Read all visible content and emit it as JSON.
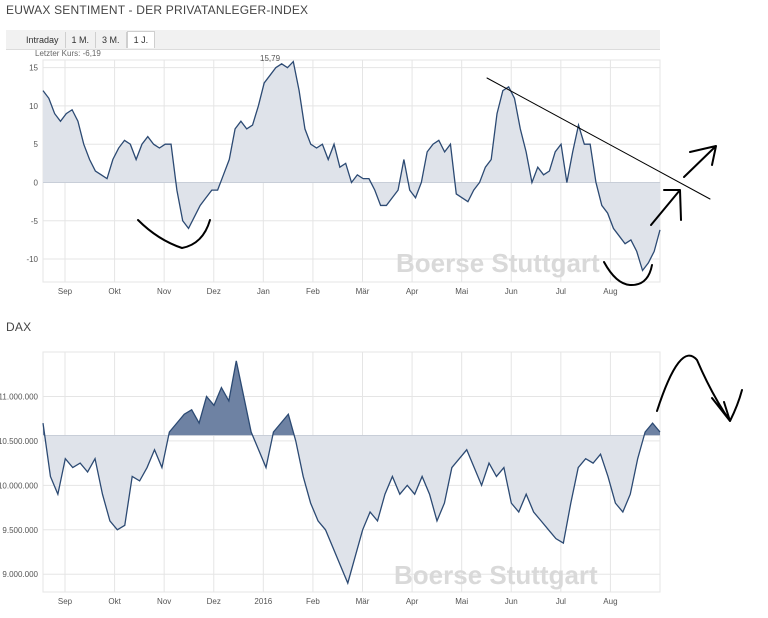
{
  "top_chart": {
    "title": "EUWAX SENTIMENT - DER PRIVATANLEGER-INDEX",
    "last_value_text": "Letzter Kurs: -6,19",
    "peak_label": "15,79",
    "watermark": "Boerse Stuttgart"
  },
  "tabs": [
    {
      "label": "Intraday",
      "active": false
    },
    {
      "label": "1 M.",
      "active": false
    },
    {
      "label": "3 M.",
      "active": false
    },
    {
      "label": "1 J.",
      "active": true
    }
  ],
  "bottom_chart": {
    "title": "DAX",
    "watermark": "Boerse Stuttgart"
  },
  "colors": {
    "line": "#2c4a73",
    "fill": "#dfe3ea",
    "fill_dark": "#6e82a3",
    "grid": "#e5e5e5",
    "annotation": "#000000"
  },
  "chart_data": [
    {
      "type": "area",
      "ylim": [
        -13,
        16
      ],
      "yticks": [
        15,
        10,
        5,
        0,
        -5,
        -10
      ],
      "baseline": 0,
      "xlabels": [
        "Sep",
        "Okt",
        "Nov",
        "Dez",
        "Jan",
        "Feb",
        "Mär",
        "Apr",
        "Mai",
        "Jun",
        "Jul",
        "Aug"
      ],
      "series": [
        {
          "values": [
            12,
            11,
            9,
            8,
            9,
            9.5,
            8,
            5,
            3,
            1.5,
            1,
            0.5,
            3,
            4.5,
            5.5,
            5,
            3,
            5,
            6,
            5,
            4.5,
            5,
            5,
            -1,
            -5,
            -6,
            -4.5,
            -3,
            -2,
            -1,
            -1,
            1,
            3,
            7,
            8,
            7,
            7.5,
            10,
            13,
            14,
            15,
            15.5,
            15,
            15.79,
            12,
            7,
            5,
            4.5,
            5,
            3,
            5,
            2,
            2.5,
            0,
            1,
            0.5,
            0.5,
            -1,
            -3,
            -3,
            -2,
            -1,
            3,
            -1,
            -2,
            0,
            4,
            5,
            5.5,
            4,
            5,
            -1.5,
            -2,
            -2.5,
            -1,
            0,
            2,
            3,
            9,
            12,
            12.5,
            11,
            7,
            4,
            0,
            2,
            1,
            1.5,
            4,
            5,
            0,
            4,
            7.5,
            5,
            5,
            0,
            -3,
            -4,
            -6,
            -7,
            -8,
            -7.5,
            -9,
            -11.5,
            -10.5,
            -9,
            -6.19
          ]
        }
      ]
    },
    {
      "type": "area",
      "ylim": [
        8800,
        11500
      ],
      "yticks": [
        11000,
        10500,
        10000,
        9500,
        9000
      ],
      "baseline": 10560,
      "xlabels": [
        "Sep",
        "Okt",
        "Nov",
        "Dez",
        "2016",
        "Feb",
        "Mär",
        "Apr",
        "Mai",
        "Jun",
        "Jul",
        "Aug"
      ],
      "series": [
        {
          "values": [
            10700,
            10100,
            9900,
            10300,
            10200,
            10250,
            10150,
            10300,
            9900,
            9600,
            9500,
            9550,
            10100,
            10050,
            10200,
            10400,
            10200,
            10600,
            10700,
            10800,
            10850,
            10700,
            11000,
            10900,
            11100,
            10950,
            11400,
            11000,
            10600,
            10400,
            10200,
            10600,
            10700,
            10800,
            10500,
            10100,
            9800,
            9600,
            9500,
            9300,
            9100,
            8900,
            9200,
            9500,
            9700,
            9600,
            9900,
            10100,
            9900,
            10000,
            9900,
            10100,
            9900,
            9600,
            9800,
            10200,
            10300,
            10400,
            10200,
            10000,
            10250,
            10100,
            10200,
            9800,
            9700,
            9900,
            9700,
            9600,
            9500,
            9400,
            9350,
            9800,
            10200,
            10300,
            10250,
            10350,
            10100,
            9800,
            9700,
            9900,
            10300,
            10600,
            10700,
            10600
          ]
        }
      ]
    }
  ]
}
